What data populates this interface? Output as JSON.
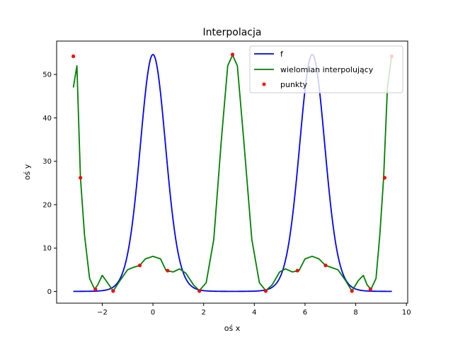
{
  "chart_data": {
    "type": "line",
    "title": "Interpolacja",
    "xlabel": "oś x",
    "ylabel": "oś y",
    "xlim": [
      -3.14,
      9.42
    ],
    "ylim": [
      0,
      55
    ],
    "view_xlim": [
      -3.8,
      10.05
    ],
    "view_ylim": [
      -2.7,
      57.7
    ],
    "xticks": [
      -2,
      0,
      2,
      4,
      6,
      8,
      10
    ],
    "yticks": [
      0,
      10,
      20,
      30,
      40,
      50
    ],
    "xtick_labels": [
      "−2",
      "0",
      "2",
      "4",
      "6",
      "8",
      "10"
    ],
    "ytick_labels": [
      "0",
      "10",
      "20",
      "30",
      "40",
      "50"
    ],
    "grid": false,
    "legend_position": "top-right",
    "series": [
      {
        "name": "f",
        "kind": "function",
        "formula": "exp(4*cos(x))",
        "x_range": [
          -3.14159,
          9.42478
        ],
        "color": "#0000ff"
      },
      {
        "name": "wielomian interpolujący",
        "kind": "curve",
        "color": "#008000",
        "x": [
          -3.14,
          -3.0,
          -2.86,
          -2.7,
          -2.5,
          -2.3,
          -2.18,
          -2.0,
          -1.85,
          -1.57,
          -1.3,
          -1.0,
          -0.8,
          -0.52,
          -0.3,
          0.0,
          0.3,
          0.52,
          0.8,
          1.05,
          1.3,
          1.6,
          1.83,
          2.1,
          2.4,
          2.7,
          2.95,
          3.14,
          3.33,
          3.58,
          3.9,
          4.2,
          4.45,
          4.7,
          5.0,
          5.23,
          5.5,
          5.76,
          6.0,
          6.28,
          6.55,
          6.81,
          7.05,
          7.3,
          7.6,
          7.85,
          8.1,
          8.3,
          8.45,
          8.6,
          8.8,
          8.95,
          9.1,
          9.25,
          9.42
        ],
        "y": [
          47,
          52,
          26.2,
          13,
          3,
          0.5,
          1.5,
          3.7,
          2.5,
          0.1,
          2.5,
          5,
          5.5,
          6,
          7.5,
          8.1,
          7.5,
          4.8,
          4.5,
          5.2,
          4.2,
          1.5,
          0.2,
          2,
          12,
          35,
          52,
          54.5,
          52,
          35,
          12,
          2,
          0.2,
          1.5,
          4.5,
          5.2,
          4.5,
          4.8,
          7.5,
          8.1,
          7.5,
          6,
          5.5,
          5,
          2.5,
          0.1,
          2.5,
          3.7,
          1.5,
          0.5,
          3,
          13,
          26.2,
          47,
          54.5
        ]
      },
      {
        "name": "punkty",
        "kind": "points",
        "color": "#ff0000",
        "x": [
          -3.14,
          -2.86,
          -2.27,
          -1.57,
          -0.52,
          0.58,
          1.83,
          3.14,
          4.45,
          5.7,
          6.81,
          7.85,
          8.58,
          9.14,
          9.42
        ],
        "y": [
          54.2,
          26.2,
          0.5,
          0.1,
          6.0,
          4.8,
          0.1,
          54.6,
          0.1,
          4.8,
          6.0,
          0.1,
          0.5,
          26.2,
          54.2
        ]
      }
    ]
  }
}
